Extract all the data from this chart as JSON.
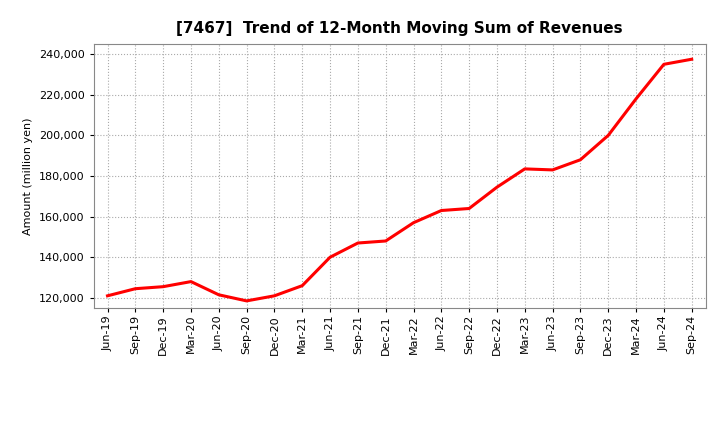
{
  "title": "[7467]  Trend of 12-Month Moving Sum of Revenues",
  "ylabel": "Amount (million yen)",
  "line_color": "#FF0000",
  "line_width": 2.2,
  "background_color": "#FFFFFF",
  "grid_color": "#AAAAAA",
  "ylim": [
    115000,
    245000
  ],
  "yticks": [
    120000,
    140000,
    160000,
    180000,
    200000,
    220000,
    240000
  ],
  "x_labels": [
    "Jun-19",
    "Sep-19",
    "Dec-19",
    "Mar-20",
    "Jun-20",
    "Sep-20",
    "Dec-20",
    "Mar-21",
    "Jun-21",
    "Sep-21",
    "Dec-21",
    "Mar-22",
    "Jun-22",
    "Sep-22",
    "Dec-22",
    "Mar-23",
    "Jun-23",
    "Sep-23",
    "Dec-23",
    "Mar-24",
    "Jun-24",
    "Sep-24"
  ],
  "values": [
    121000,
    124500,
    125500,
    128000,
    121500,
    118500,
    121000,
    126000,
    140000,
    147000,
    148000,
    157000,
    163000,
    164000,
    174500,
    183500,
    183000,
    188000,
    200000,
    218000,
    235000,
    237500
  ],
  "title_fontsize": 11,
  "ylabel_fontsize": 8,
  "tick_fontsize": 8
}
